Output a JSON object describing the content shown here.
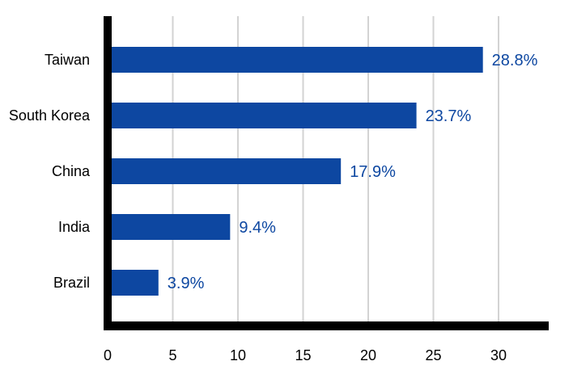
{
  "chart_data": {
    "type": "bar",
    "orientation": "horizontal",
    "categories": [
      "Taiwan",
      "South Korea",
      "China",
      "India",
      "Brazil"
    ],
    "values": [
      28.8,
      23.7,
      17.9,
      9.4,
      3.9
    ],
    "value_labels": [
      "28.8%",
      "23.7%",
      "17.9%",
      "9.4%",
      "3.9%"
    ],
    "title": "",
    "xlabel": "",
    "ylabel": "",
    "xlim": [
      0,
      34
    ],
    "xticks": [
      0,
      5,
      10,
      15,
      20,
      25,
      30
    ],
    "xtick_labels": [
      "0",
      "5",
      "10",
      "15",
      "20",
      "25",
      "30"
    ],
    "grid": "vertical",
    "legend": "none",
    "colors": {
      "bar": "#0d47a1",
      "value_label": "#0d47a1",
      "axis": "#000000",
      "grid": "#d3d3d3"
    }
  }
}
